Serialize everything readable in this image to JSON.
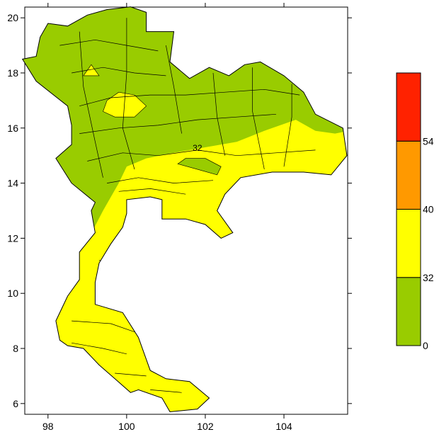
{
  "map": {
    "xlim": [
      97.41,
      105.62
    ],
    "ylim": [
      5.61,
      20.39
    ],
    "xticks": [
      98,
      100,
      102,
      104
    ],
    "yticks": [
      6,
      8,
      10,
      12,
      14,
      16,
      18,
      20
    ],
    "contour_label": "32",
    "legend": {
      "levels": [
        0,
        32,
        40,
        54
      ],
      "colors": [
        "#99cc00",
        "#ffff00",
        "#ff9900",
        "#ff2200"
      ]
    }
  }
}
